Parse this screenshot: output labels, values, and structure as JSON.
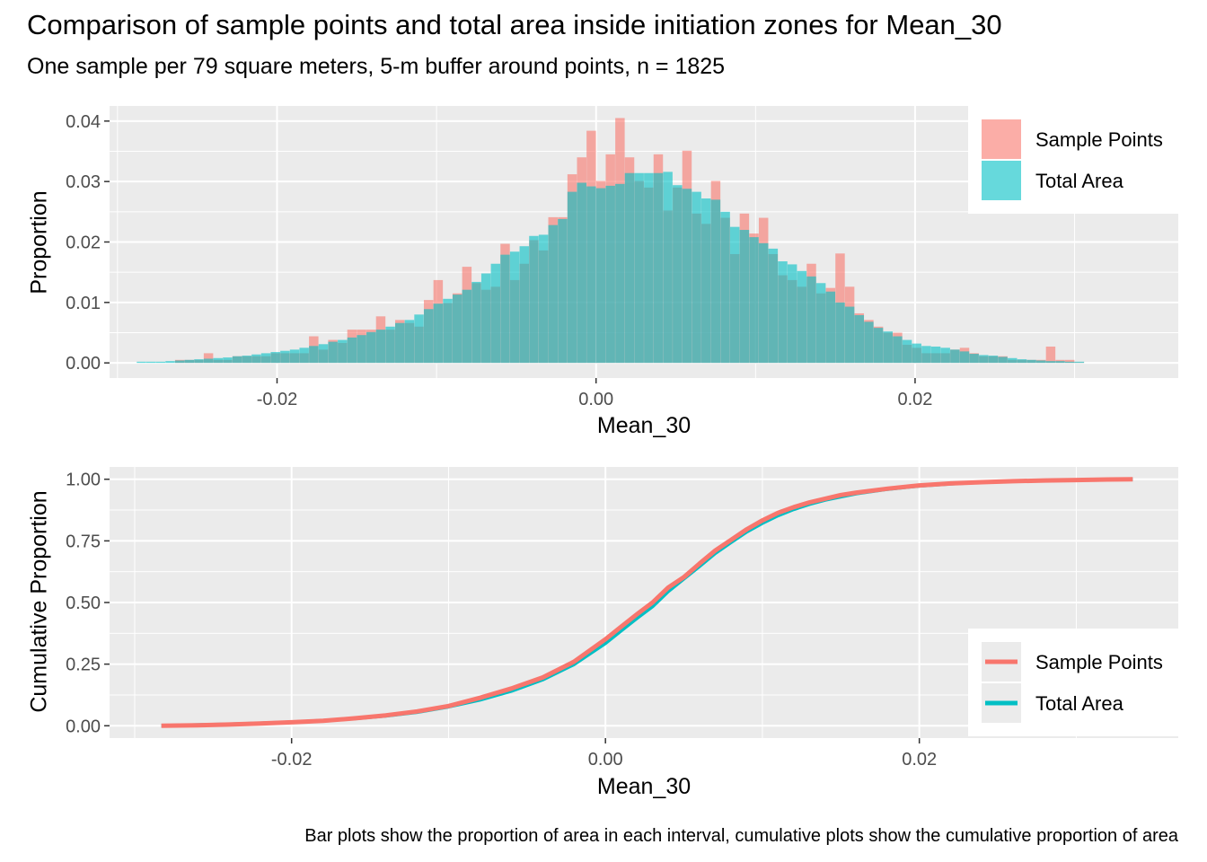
{
  "title": "Comparison of sample points and total area inside initiation zones for Mean_30",
  "subtitle": "One sample per 79 square meters, 5-m buffer around points, n = 1825",
  "caption": "Bar plots show the proportion of area in each interval, cumulative plots show the cumulative proportion of area",
  "colors": {
    "sample_points": "#F8766D",
    "total_area": "#00BFC4",
    "panel_bg": "#EBEBEB",
    "grid": "#FFFFFF"
  },
  "chart_data": [
    {
      "type": "bar",
      "xlabel": "Mean_30",
      "ylabel": "Proportion",
      "xlim": [
        -0.0305,
        0.0365
      ],
      "ylim": [
        -0.0025,
        0.0425
      ],
      "xticks": [
        -0.02,
        0.0,
        0.02
      ],
      "xtick_labels": [
        "-0.02",
        "0.00",
        "0.02"
      ],
      "yticks": [
        0.0,
        0.01,
        0.02,
        0.03,
        0.04
      ],
      "ytick_labels": [
        "0.00",
        "0.01",
        "0.02",
        "0.03",
        "0.04"
      ],
      "grid": true,
      "legend_position": "top-right",
      "bar_width": 0.00059,
      "x": [
        -0.0285,
        -0.0279,
        -0.0273,
        -0.0267,
        -0.0261,
        -0.0255,
        -0.0249,
        -0.0243,
        -0.0237,
        -0.0231,
        -0.0225,
        -0.0219,
        -0.0213,
        -0.0207,
        -0.0201,
        -0.0195,
        -0.0189,
        -0.0183,
        -0.0177,
        -0.0171,
        -0.0165,
        -0.0159,
        -0.0153,
        -0.0147,
        -0.0141,
        -0.0135,
        -0.0129,
        -0.0123,
        -0.0117,
        -0.0111,
        -0.0105,
        -0.0099,
        -0.0093,
        -0.0087,
        -0.0081,
        -0.0075,
        -0.0069,
        -0.0063,
        -0.0057,
        -0.0051,
        -0.0045,
        -0.0039,
        -0.0033,
        -0.0027,
        -0.0021,
        -0.0015,
        -0.0009,
        -0.0003,
        0.0003,
        0.0009,
        0.0015,
        0.0021,
        0.0027,
        0.0033,
        0.0039,
        0.0045,
        0.0051,
        0.0057,
        0.0063,
        0.0069,
        0.0075,
        0.0081,
        0.0087,
        0.0093,
        0.0099,
        0.0105,
        0.0111,
        0.0117,
        0.0123,
        0.0129,
        0.0135,
        0.0141,
        0.0147,
        0.0153,
        0.0159,
        0.0165,
        0.0171,
        0.0177,
        0.0183,
        0.0189,
        0.0195,
        0.0201,
        0.0207,
        0.0213,
        0.0219,
        0.0225,
        0.0231,
        0.0237,
        0.0243,
        0.0249,
        0.0255,
        0.0261,
        0.0267,
        0.0273,
        0.0279,
        0.0285,
        0.0291,
        0.0297,
        0.0303
      ],
      "series": [
        {
          "name": "Sample Points",
          "values": [
            0,
            0,
            0,
            0,
            0.0005,
            0.0005,
            0.0005,
            0.0016,
            0.0005,
            0.0005,
            0.0011,
            0.0011,
            0.0011,
            0.0011,
            0.0016,
            0.0016,
            0.0016,
            0.0016,
            0.0044,
            0.0022,
            0.0038,
            0.0033,
            0.0055,
            0.0055,
            0.0055,
            0.0077,
            0.0055,
            0.0071,
            0.0066,
            0.006,
            0.0104,
            0.0137,
            0.0099,
            0.0115,
            0.0159,
            0.0132,
            0.0121,
            0.0126,
            0.0197,
            0.0137,
            0.0164,
            0.0203,
            0.0186,
            0.0241,
            0.0241,
            0.0312,
            0.034,
            0.0384,
            0.0301,
            0.0345,
            0.0405,
            0.034,
            0.0301,
            0.029,
            0.0345,
            0.0252,
            0.029,
            0.0351,
            0.0247,
            0.023,
            0.0301,
            0.024,
            0.018,
            0.0247,
            0.0214,
            0.024,
            0.018,
            0.0145,
            0.0137,
            0.0126,
            0.0164,
            0.0115,
            0.0124,
            0.0181,
            0.0126,
            0.0082,
            0.0071,
            0.006,
            0.005,
            0.005,
            0.003,
            0.0025,
            0.0016,
            0.0016,
            0.0016,
            0.0022,
            0.0025,
            0.0016,
            0.0011,
            0.0011,
            0.0011,
            0.0005,
            0.0005,
            0.0005,
            0.0005,
            0.0027,
            0.0005,
            0.0005,
            0.0001
          ]
        },
        {
          "name": "Total Area",
          "values": [
            0.0002,
            0.0002,
            0.0002,
            0.0003,
            0.0004,
            0.0005,
            0.0006,
            0.0007,
            0.0008,
            0.0009,
            0.0011,
            0.0012,
            0.0014,
            0.0016,
            0.0018,
            0.002,
            0.0022,
            0.0025,
            0.0028,
            0.0031,
            0.0035,
            0.0038,
            0.0042,
            0.0046,
            0.0051,
            0.0055,
            0.006,
            0.0066,
            0.0071,
            0.008,
            0.0089,
            0.0098,
            0.0106,
            0.0113,
            0.0121,
            0.0134,
            0.0148,
            0.0164,
            0.0179,
            0.0184,
            0.0193,
            0.021,
            0.0212,
            0.0228,
            0.0238,
            0.0283,
            0.0298,
            0.0292,
            0.0289,
            0.0293,
            0.0296,
            0.0314,
            0.0314,
            0.0314,
            0.0314,
            0.0316,
            0.0294,
            0.0288,
            0.0283,
            0.0272,
            0.027,
            0.025,
            0.0225,
            0.022,
            0.0208,
            0.0198,
            0.0189,
            0.0168,
            0.0163,
            0.0152,
            0.0143,
            0.0132,
            0.0118,
            0.01,
            0.0093,
            0.0079,
            0.0068,
            0.0058,
            0.0052,
            0.0044,
            0.0038,
            0.0032,
            0.0028,
            0.0027,
            0.0025,
            0.0022,
            0.0019,
            0.0015,
            0.0013,
            0.0012,
            0.001,
            0.0008,
            0.0006,
            0.0005,
            0.0004,
            0.0003,
            0.0003,
            0.0002,
            0.0002
          ]
        }
      ]
    },
    {
      "type": "line",
      "xlabel": "Mean_30",
      "ylabel": "Cumulative Proportion",
      "xlim": [
        -0.0316,
        0.0365
      ],
      "ylim": [
        -0.05,
        1.05
      ],
      "xticks": [
        -0.02,
        0.0,
        0.02
      ],
      "xtick_labels": [
        "-0.02",
        "0.00",
        "0.02"
      ],
      "yticks": [
        0.0,
        0.25,
        0.5,
        0.75,
        1.0
      ],
      "ytick_labels": [
        "0.00",
        "0.25",
        "0.50",
        "0.75",
        "1.00"
      ],
      "grid": true,
      "legend_position": "bottom-right",
      "x": [
        -0.0283,
        -0.026,
        -0.024,
        -0.022,
        -0.02,
        -0.018,
        -0.016,
        -0.014,
        -0.012,
        -0.01,
        -0.008,
        -0.006,
        -0.004,
        -0.002,
        0.0,
        0.001,
        0.002,
        0.003,
        0.004,
        0.005,
        0.006,
        0.007,
        0.008,
        0.009,
        0.01,
        0.011,
        0.012,
        0.013,
        0.014,
        0.015,
        0.016,
        0.018,
        0.02,
        0.022,
        0.024,
        0.026,
        0.028,
        0.03,
        0.032,
        0.0336
      ],
      "series": [
        {
          "name": "Total Area",
          "values": [
            0.0,
            0.003,
            0.006,
            0.01,
            0.015,
            0.021,
            0.029,
            0.04,
            0.055,
            0.077,
            0.105,
            0.141,
            0.187,
            0.249,
            0.335,
            0.386,
            0.436,
            0.484,
            0.545,
            0.597,
            0.647,
            0.7,
            0.744,
            0.787,
            0.822,
            0.853,
            0.878,
            0.899,
            0.916,
            0.929,
            0.942,
            0.96,
            0.973,
            0.982,
            0.988,
            0.992,
            0.995,
            0.997,
            0.999,
            1.0
          ]
        },
        {
          "name": "Sample Points",
          "values": [
            0.0,
            0.002,
            0.005,
            0.009,
            0.014,
            0.02,
            0.03,
            0.042,
            0.058,
            0.08,
            0.113,
            0.151,
            0.196,
            0.26,
            0.351,
            0.402,
            0.452,
            0.5,
            0.561,
            0.603,
            0.658,
            0.711,
            0.754,
            0.797,
            0.833,
            0.864,
            0.887,
            0.906,
            0.921,
            0.936,
            0.946,
            0.962,
            0.975,
            0.983,
            0.988,
            0.992,
            0.995,
            0.997,
            0.999,
            1.0
          ]
        }
      ]
    }
  ]
}
